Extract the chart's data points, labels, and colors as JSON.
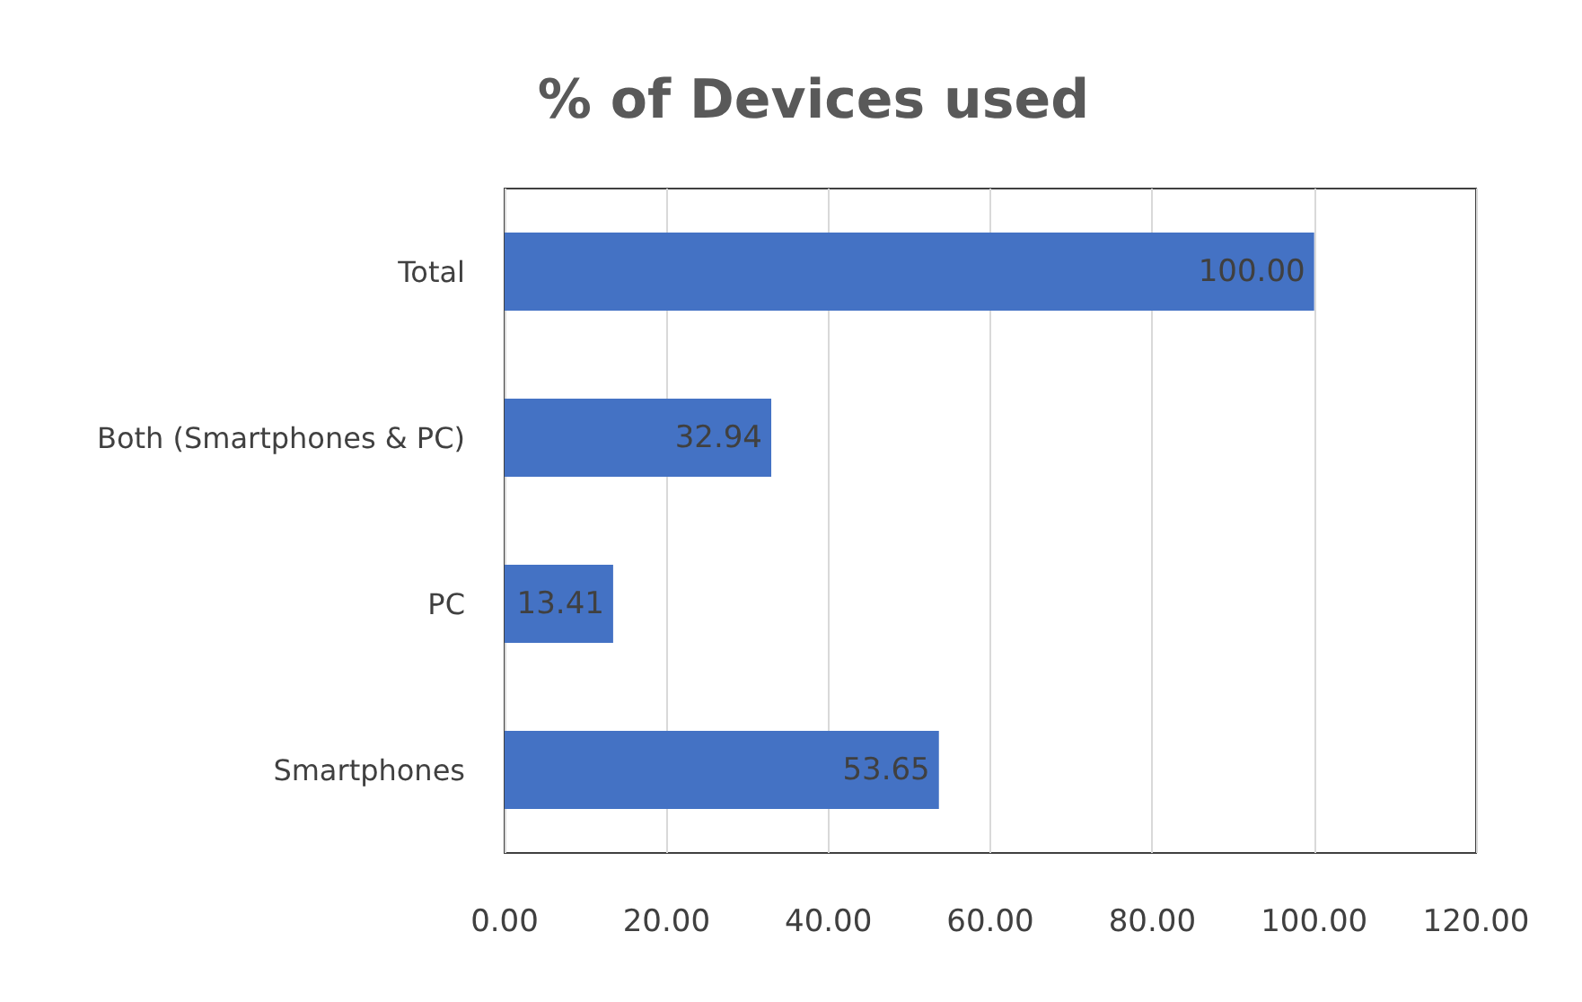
{
  "chart_data": {
    "type": "bar",
    "orientation": "horizontal",
    "title": "% of Devices used",
    "categories": [
      "Total",
      "Both (Smartphones & PC)",
      "PC",
      "Smartphones"
    ],
    "values": [
      100,
      32.94,
      13.41,
      53.65
    ],
    "value_labels": [
      "100.00",
      "32.94",
      "13.41",
      "53.65"
    ],
    "color": "#4472c4",
    "xlim": [
      0,
      120
    ],
    "xticks": [
      {
        "value": 0,
        "label": "0.00"
      },
      {
        "value": 20,
        "label": "20.00"
      },
      {
        "value": 40,
        "label": "40.00"
      },
      {
        "value": 60,
        "label": "60.00"
      },
      {
        "value": 80,
        "label": "80.00"
      },
      {
        "value": 100,
        "label": "100.00"
      },
      {
        "value": 120,
        "label": "120.00"
      }
    ],
    "grid": "x"
  }
}
